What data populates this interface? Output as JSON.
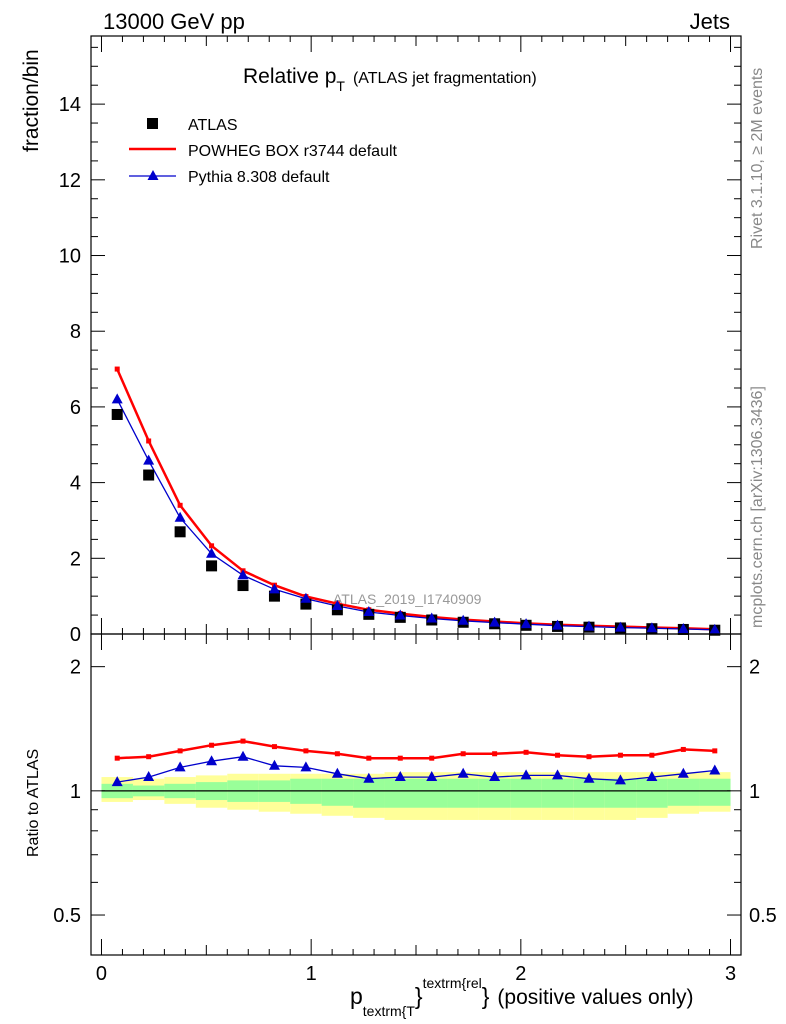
{
  "header": {
    "left": "13000 GeV pp",
    "right": "Jets"
  },
  "side_labels": {
    "rivet": "Rivet 3.1.10, ≥ 2M events",
    "mcplots": "mcplots.cern.ch [arXiv:1306.3436]"
  },
  "chart_data": {
    "type": "scatter",
    "title": {
      "main": "Relative p",
      "sub": "T",
      "rest": "(ATLAS jet fragmentation)"
    },
    "analysis_label": "ATLAS_2019_I1740909",
    "ylabel": "fraction/bin",
    "ylabel_ratio": "Ratio to ATLAS",
    "xlabel": {
      "p": "p",
      "sub": "textrm{T",
      "close_sub": "}",
      "sup": "textrm{rel",
      "close_sup": "}",
      "rest": "(positive values only)"
    },
    "xlim": [
      -0.05,
      3.05
    ],
    "ylim": [
      0,
      15.8
    ],
    "ratio_ylim": [
      0.4,
      2.4
    ],
    "ratio_scale": "log",
    "x_ticks": [
      "0",
      "1",
      "2",
      "3"
    ],
    "y_ticks": [
      "0",
      "2",
      "4",
      "6",
      "8",
      "10",
      "12",
      "14"
    ],
    "ratio_ticks": [
      "0.5",
      "1",
      "2"
    ],
    "legend_position": "top-left",
    "x": [
      0.075,
      0.225,
      0.375,
      0.525,
      0.675,
      0.825,
      0.975,
      1.125,
      1.275,
      1.425,
      1.575,
      1.725,
      1.875,
      2.025,
      2.175,
      2.325,
      2.475,
      2.625,
      2.775,
      2.925
    ],
    "series": [
      {
        "name": "ATLAS",
        "color": "#000000",
        "marker": "square",
        "values": [
          5.8,
          4.2,
          2.7,
          1.8,
          1.28,
          1.0,
          0.79,
          0.64,
          0.52,
          0.44,
          0.37,
          0.31,
          0.27,
          0.23,
          0.2,
          0.18,
          0.16,
          0.14,
          0.12,
          0.1
        ]
      },
      {
        "name": "POWHEG BOX r3744 default",
        "color": "#ff0000",
        "marker": "line",
        "values": [
          7.0,
          5.1,
          3.4,
          2.33,
          1.67,
          1.29,
          0.99,
          0.8,
          0.64,
          0.54,
          0.45,
          0.38,
          0.33,
          0.28,
          0.245,
          0.22,
          0.196,
          0.171,
          0.15,
          0.125
        ]
      },
      {
        "name": "Pythia 8.308 default",
        "color": "#0000cc",
        "marker": "triangle",
        "values": [
          6.2,
          4.58,
          3.07,
          2.12,
          1.55,
          1.18,
          0.93,
          0.74,
          0.58,
          0.49,
          0.41,
          0.35,
          0.3,
          0.26,
          0.22,
          0.195,
          0.17,
          0.152,
          0.132,
          0.11
        ]
      }
    ],
    "ratio": {
      "POWHEG BOX r3744 default": [
        1.2,
        1.21,
        1.25,
        1.29,
        1.32,
        1.28,
        1.25,
        1.23,
        1.2,
        1.2,
        1.2,
        1.23,
        1.23,
        1.24,
        1.22,
        1.21,
        1.22,
        1.22,
        1.26,
        1.25
      ],
      "Pythia 8.308 default": [
        1.05,
        1.08,
        1.14,
        1.18,
        1.21,
        1.15,
        1.14,
        1.1,
        1.07,
        1.08,
        1.08,
        1.1,
        1.08,
        1.09,
        1.09,
        1.07,
        1.06,
        1.08,
        1.1,
        1.12
      ]
    },
    "band_stat": [
      [
        0.96,
        1.04
      ],
      [
        0.97,
        1.03
      ],
      [
        0.96,
        1.04
      ],
      [
        0.95,
        1.05
      ],
      [
        0.94,
        1.06
      ],
      [
        0.94,
        1.06
      ],
      [
        0.93,
        1.07
      ],
      [
        0.92,
        1.07
      ],
      [
        0.91,
        1.07
      ],
      [
        0.91,
        1.07
      ],
      [
        0.91,
        1.07
      ],
      [
        0.91,
        1.07
      ],
      [
        0.91,
        1.07
      ],
      [
        0.91,
        1.07
      ],
      [
        0.91,
        1.07
      ],
      [
        0.91,
        1.07
      ],
      [
        0.91,
        1.07
      ],
      [
        0.91,
        1.07
      ],
      [
        0.92,
        1.07
      ],
      [
        0.92,
        1.07
      ]
    ],
    "band_total": [
      [
        0.94,
        1.08
      ],
      [
        0.95,
        1.07
      ],
      [
        0.93,
        1.08
      ],
      [
        0.91,
        1.09
      ],
      [
        0.9,
        1.1
      ],
      [
        0.89,
        1.1
      ],
      [
        0.88,
        1.1
      ],
      [
        0.87,
        1.1
      ],
      [
        0.86,
        1.1
      ],
      [
        0.85,
        1.11
      ],
      [
        0.85,
        1.11
      ],
      [
        0.85,
        1.11
      ],
      [
        0.85,
        1.11
      ],
      [
        0.85,
        1.11
      ],
      [
        0.85,
        1.11
      ],
      [
        0.85,
        1.11
      ],
      [
        0.85,
        1.11
      ],
      [
        0.86,
        1.11
      ],
      [
        0.88,
        1.11
      ],
      [
        0.89,
        1.11
      ]
    ],
    "colors": {
      "band_stat": "#99ff99",
      "band_total": "#ffff99"
    }
  }
}
